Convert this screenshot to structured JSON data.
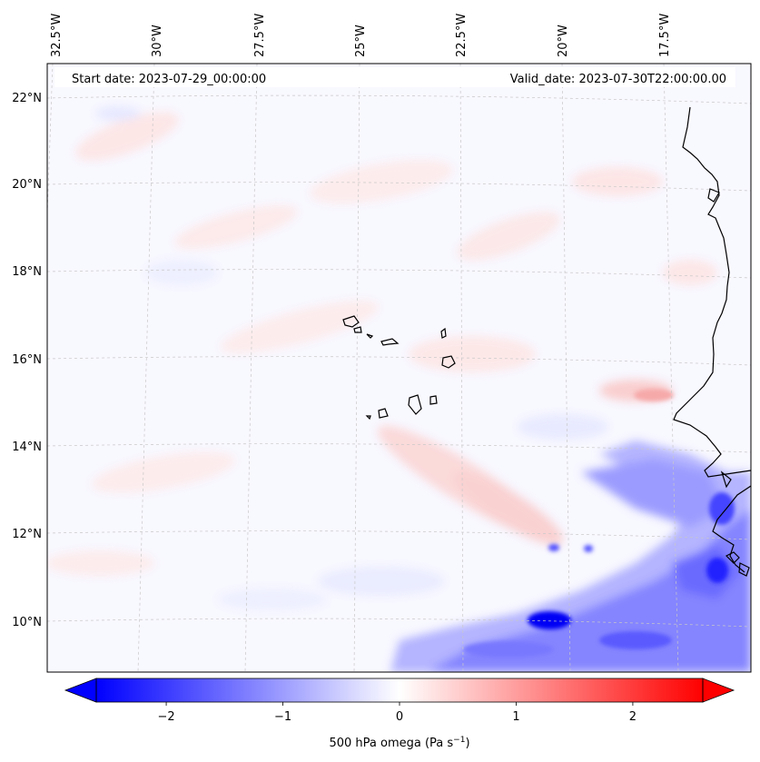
{
  "header": {
    "start_date": "Start date: 2023-07-29_00:00:00",
    "valid_date": "Valid_date: 2023-07-30T22:00:00.00"
  },
  "map": {
    "lon_labels": [
      {
        "lon": -32.5,
        "text": "32.5°W"
      },
      {
        "lon": -30.0,
        "text": "30°W"
      },
      {
        "lon": -27.5,
        "text": "27.5°W"
      },
      {
        "lon": -25.0,
        "text": "25°W"
      },
      {
        "lon": -22.5,
        "text": "22.5°W"
      },
      {
        "lon": -20.0,
        "text": "20°W"
      },
      {
        "lon": -17.5,
        "text": "17.5°W"
      }
    ],
    "lat_labels": [
      {
        "lat": 22,
        "text": "22°N"
      },
      {
        "lat": 20,
        "text": "20°N"
      },
      {
        "lat": 18,
        "text": "18°N"
      },
      {
        "lat": 16,
        "text": "16°N"
      },
      {
        "lat": 14,
        "text": "14°N"
      },
      {
        "lat": 12,
        "text": "12°N"
      },
      {
        "lat": 10,
        "text": "10°N"
      }
    ],
    "gridlines": "on, dashed, light gray",
    "coastline_color": "#000000"
  },
  "colorbar": {
    "label": "500 hPa omega (Pa s",
    "label_sup": "−1",
    "label_end": ")",
    "vmin": -2.6,
    "vmax": 2.6,
    "ticks": [
      {
        "value": -2,
        "text": "−2"
      },
      {
        "value": -1,
        "text": "−1"
      },
      {
        "value": 0,
        "text": "0"
      },
      {
        "value": 1,
        "text": "1"
      },
      {
        "value": 2,
        "text": "2"
      }
    ],
    "colormap": "bwr",
    "color_low": "#0000ff",
    "color_mid": "#ffffff",
    "color_high": "#ff0000",
    "extend": "both"
  }
}
